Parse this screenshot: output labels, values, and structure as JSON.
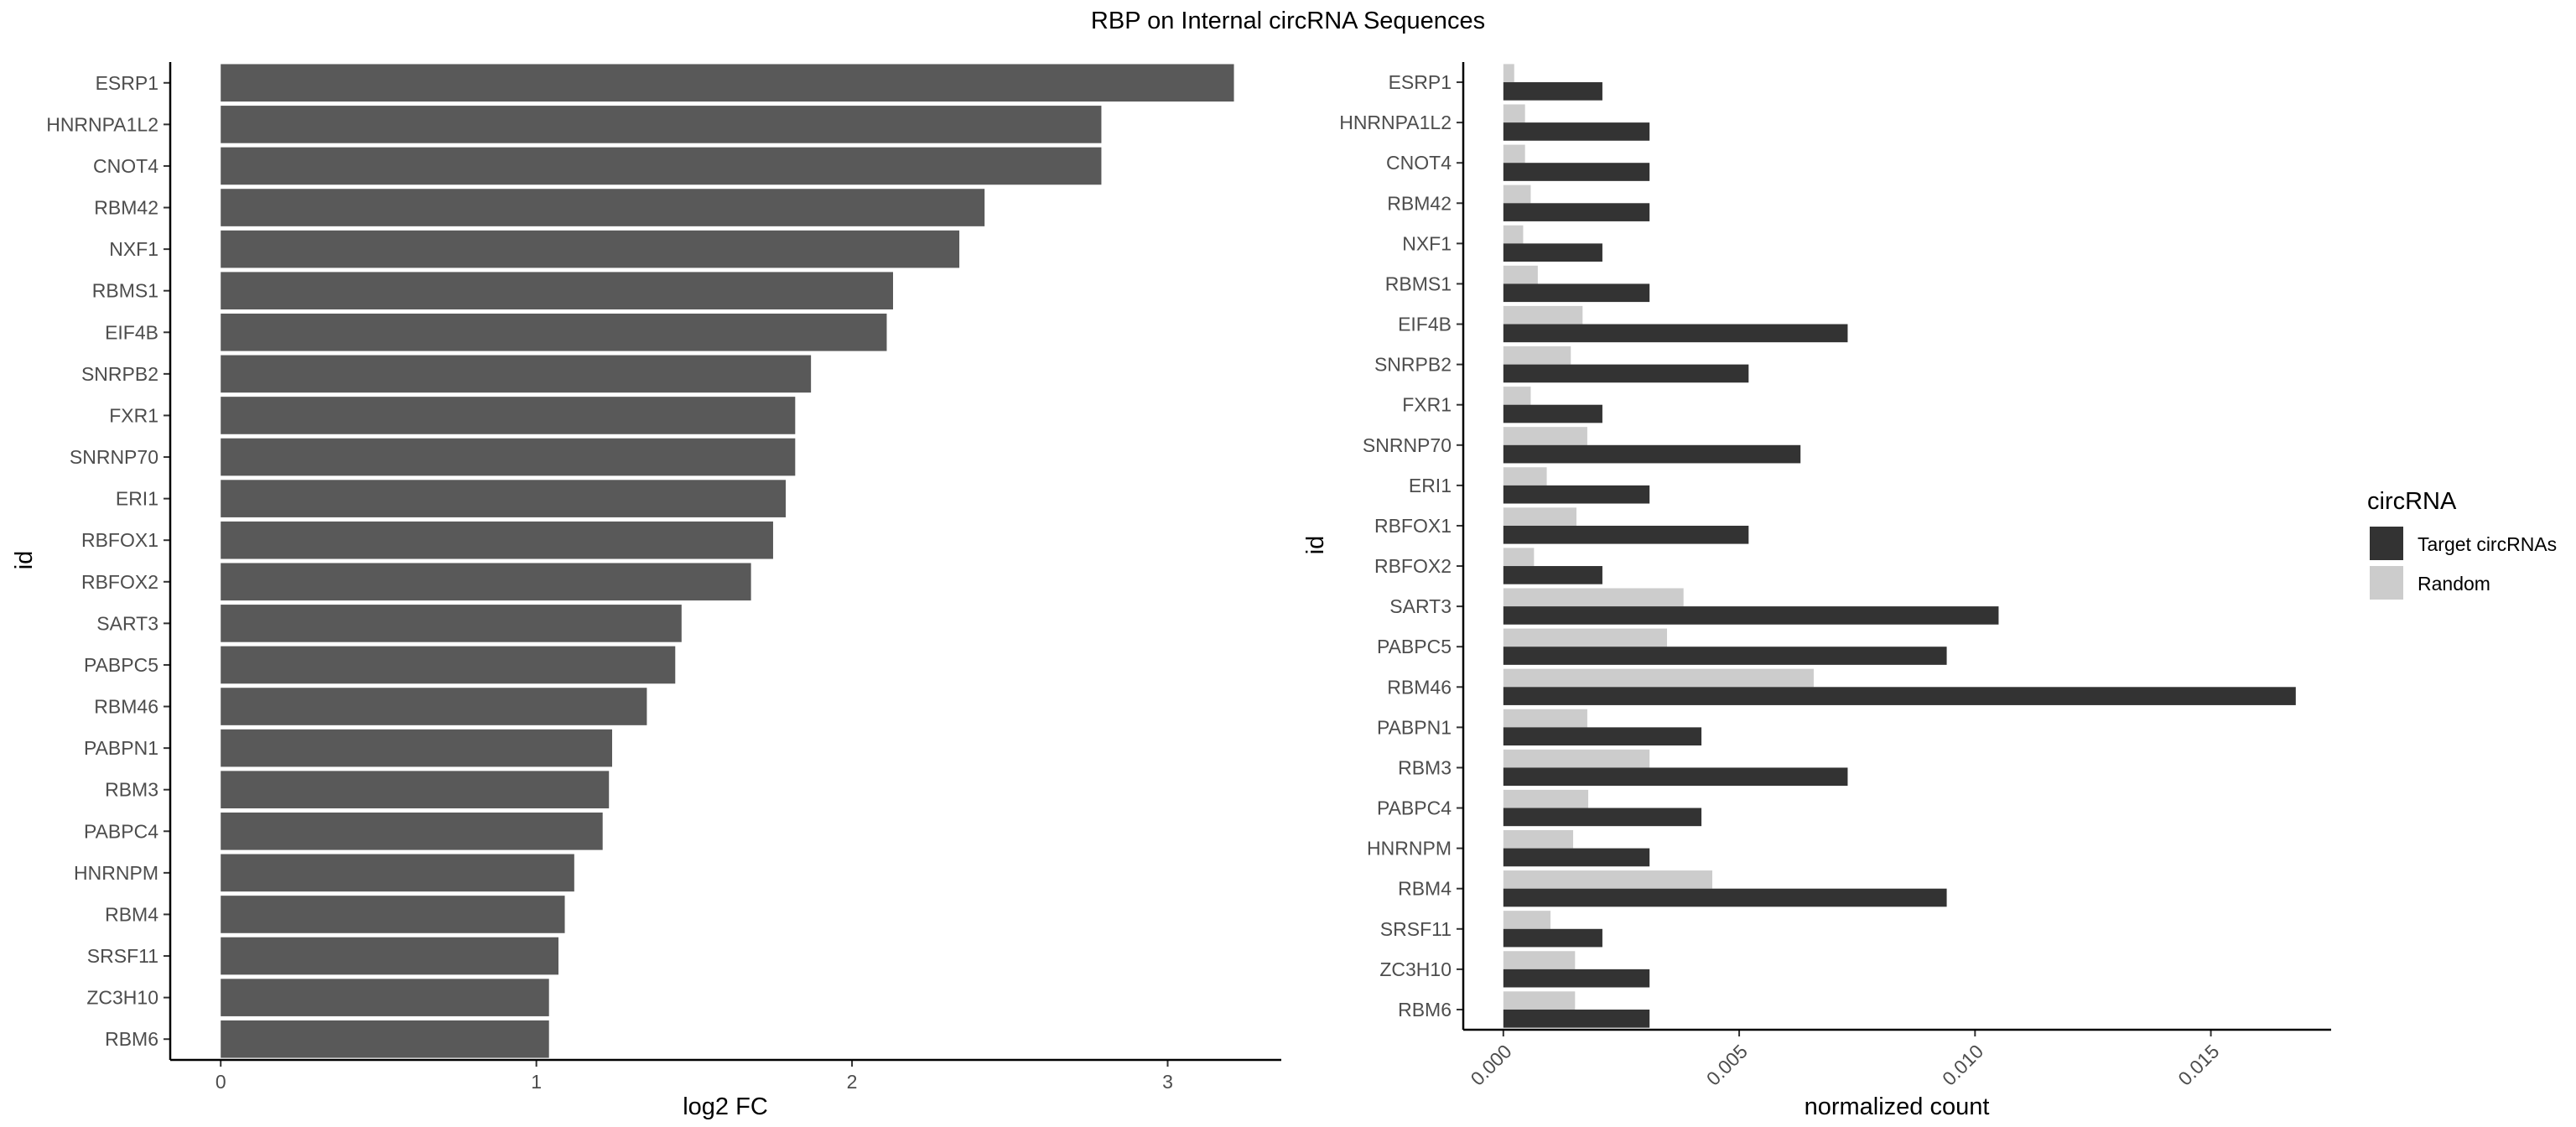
{
  "title": "RBP on Internal circRNA Sequences",
  "colors": {
    "left_bar": "#595959",
    "target": "#333333",
    "random": "#cccccc",
    "axis": "#000000",
    "text": "#4d4d4d"
  },
  "chart_data": [
    {
      "type": "bar",
      "orientation": "horizontal",
      "xlabel": "log2 FC",
      "ylabel": "id",
      "xlim": [
        -0.16,
        3.36
      ],
      "xticks": [
        0,
        1,
        2,
        3
      ],
      "xtick_labels": [
        "0",
        "1",
        "2",
        "3"
      ],
      "categories": [
        "ESRP1",
        "HNRNPA1L2",
        "CNOT4",
        "RBM42",
        "NXF1",
        "RBMS1",
        "EIF4B",
        "SNRPB2",
        "FXR1",
        "SNRNP70",
        "ERI1",
        "RBFOX1",
        "RBFOX2",
        "SART3",
        "PABPC5",
        "RBM46",
        "PABPN1",
        "RBM3",
        "PABPC4",
        "HNRNPM",
        "RBM4",
        "SRSF11",
        "ZC3H10",
        "RBM6"
      ],
      "values": [
        3.21,
        2.79,
        2.79,
        2.42,
        2.34,
        2.13,
        2.11,
        1.87,
        1.82,
        1.82,
        1.79,
        1.75,
        1.68,
        1.46,
        1.44,
        1.35,
        1.24,
        1.23,
        1.21,
        1.12,
        1.09,
        1.07,
        1.04,
        1.04
      ]
    },
    {
      "type": "bar",
      "orientation": "horizontal",
      "grouped": true,
      "xlabel": "normalized count",
      "ylabel": "id",
      "xlim": [
        -0.00085,
        0.01755
      ],
      "xticks": [
        0,
        0.005,
        0.01,
        0.015
      ],
      "xtick_labels": [
        "0.000",
        "0.005",
        "0.010",
        "0.015"
      ],
      "legend": {
        "title": "circRNA",
        "position": "right"
      },
      "categories": [
        "ESRP1",
        "HNRNPA1L2",
        "CNOT4",
        "RBM42",
        "NXF1",
        "RBMS1",
        "EIF4B",
        "SNRPB2",
        "FXR1",
        "SNRNP70",
        "ERI1",
        "RBFOX1",
        "RBFOX2",
        "SART3",
        "PABPC5",
        "RBM46",
        "PABPN1",
        "RBM3",
        "PABPC4",
        "HNRNPM",
        "RBM4",
        "SRSF11",
        "ZC3H10",
        "RBM6"
      ],
      "series": [
        {
          "name": "Target circRNAs",
          "color": "#333333",
          "values": [
            0.0021,
            0.0031,
            0.0031,
            0.0031,
            0.0021,
            0.0031,
            0.0073,
            0.0052,
            0.0021,
            0.0063,
            0.0031,
            0.0052,
            0.0021,
            0.0105,
            0.0094,
            0.0168,
            0.0042,
            0.0073,
            0.0042,
            0.0031,
            0.0094,
            0.0021,
            0.0031,
            0.0031
          ]
        },
        {
          "name": "Random",
          "color": "#cccccc",
          "values": [
            0.00023,
            0.00046,
            0.00046,
            0.00058,
            0.00042,
            0.00073,
            0.00168,
            0.00143,
            0.00058,
            0.00178,
            0.00092,
            0.00155,
            0.00065,
            0.00382,
            0.00347,
            0.00658,
            0.00178,
            0.0031,
            0.0018,
            0.00148,
            0.00443,
            0.001,
            0.00152,
            0.00152
          ]
        }
      ]
    }
  ]
}
